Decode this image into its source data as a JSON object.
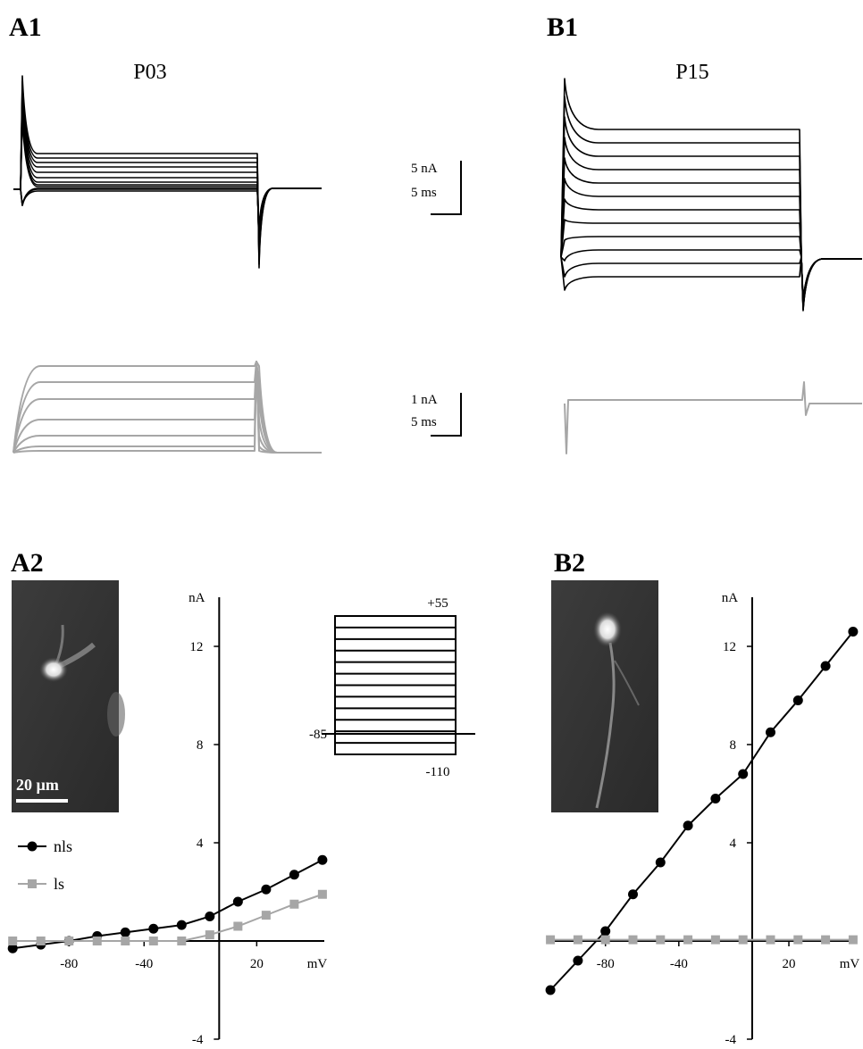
{
  "panel_labels": [
    "A1",
    "B1",
    "A2",
    "B2"
  ],
  "trace_titles": [
    "P03",
    "P15"
  ],
  "scale_bars": {
    "black": [
      "5 nA",
      "5 ms"
    ],
    "gray": [
      "1 nA",
      "5 ms"
    ],
    "image": "20 µm"
  },
  "protocol": {
    "top": "+55",
    "hold": "-85",
    "bottom": "-110"
  },
  "chart_data": [
    {
      "type": "line",
      "x_label": "mV",
      "y_label": "nA",
      "x": [
        -110,
        -95,
        -80,
        -65,
        -50,
        -35,
        -20,
        -5,
        10,
        25,
        40,
        55
      ],
      "series": [
        {
          "name": "nls",
          "color": "#000000",
          "marker": "circle",
          "values": [
            -0.3,
            -0.15,
            0,
            0.2,
            0.35,
            0.5,
            0.65,
            1.0,
            1.6,
            2.1,
            2.7,
            3.3
          ]
        },
        {
          "name": "ls",
          "color": "#a6a6a6",
          "marker": "square",
          "values": [
            0,
            0,
            0,
            0,
            0,
            0,
            0,
            0.25,
            0.6,
            1.05,
            1.5,
            1.9
          ]
        }
      ],
      "xlim": [
        -112,
        56
      ],
      "ylim": [
        -4,
        14
      ],
      "xticks": [
        -80,
        -40,
        20
      ],
      "yticks": [
        -4,
        4,
        8,
        12
      ],
      "legend": "lower-left"
    },
    {
      "type": "line",
      "x_label": "mV",
      "y_label": "nA",
      "x": [
        -110,
        -95,
        -80,
        -65,
        -50,
        -35,
        -20,
        -5,
        10,
        25,
        40,
        55
      ],
      "series": [
        {
          "color": "#000000",
          "marker": "circle",
          "values": [
            -2.0,
            -0.8,
            0.4,
            1.9,
            3.2,
            4.7,
            5.8,
            6.8,
            8.5,
            9.8,
            11.2,
            12.6
          ]
        },
        {
          "color": "#a6a6a6",
          "marker": "square",
          "values": [
            0.05,
            0.05,
            0.05,
            0.05,
            0.05,
            0.05,
            0.05,
            0.05,
            0.05,
            0.05,
            0.05,
            0.05
          ]
        }
      ],
      "xlim": [
        -112,
        57
      ],
      "ylim": [
        -4,
        14
      ],
      "xticks": [
        -80,
        -40,
        20
      ],
      "yticks": [
        -4,
        4,
        8,
        12
      ]
    }
  ]
}
